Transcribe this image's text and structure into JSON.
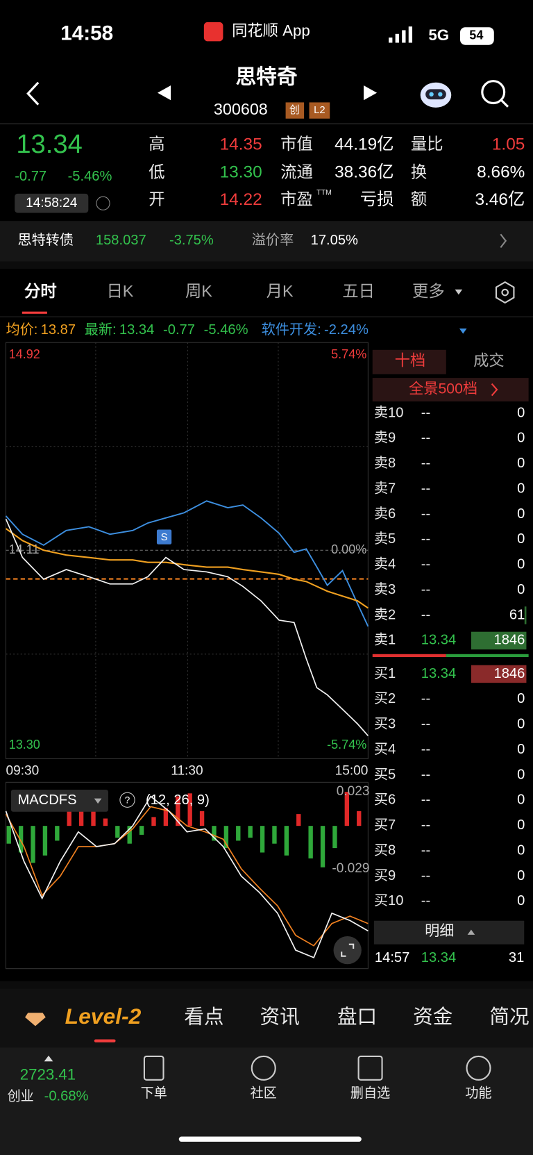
{
  "status": {
    "time": "14:58",
    "app": "同花顺 App",
    "network": "5G",
    "battery": "54"
  },
  "header": {
    "name": "思特奇",
    "code": "300608",
    "badges": [
      "创",
      "L2"
    ]
  },
  "quote": {
    "price": "13.34",
    "change": "-0.77",
    "change_pct": "-5.46%",
    "time": "14:58:24",
    "stats": [
      {
        "label": "高",
        "value": "14.35"
      },
      {
        "label": "低",
        "value": "13.30"
      },
      {
        "label": "开",
        "value": "14.22"
      }
    ],
    "metrics": [
      {
        "label": "市值",
        "value": "44.19亿"
      },
      {
        "label": "流通",
        "value": "38.36亿"
      },
      {
        "label": "市盈",
        "sup": "TTM",
        "value": "亏损"
      }
    ],
    "ratios": [
      {
        "label": "量比",
        "value": "1.05"
      },
      {
        "label": "换",
        "value": "8.66%"
      },
      {
        "label": "额",
        "value": "3.46亿"
      }
    ]
  },
  "bond": {
    "name": "思特转债",
    "price": "158.037",
    "pct": "-3.75%",
    "premium_label": "溢价率",
    "premium": "17.05%"
  },
  "tabs": [
    "分时",
    "日K",
    "周K",
    "月K",
    "五日",
    "更多"
  ],
  "info": {
    "avg_label": "均价:",
    "avg": "13.87",
    "latest_label": "最新:",
    "latest": "13.34",
    "change": "-0.77",
    "pct": "-5.46%",
    "sector_label": "软件开发:",
    "sector_pct": "-2.24%"
  },
  "intraday": {
    "marker": "S",
    "xlim": [
      0,
      240
    ],
    "xticks": [
      {
        "value": 0,
        "label": "09:30"
      },
      {
        "value": 120,
        "label": "11:30"
      },
      {
        "value": 240,
        "label": "15:00"
      }
    ],
    "ylim": [
      13.3,
      14.92
    ],
    "yticks": [
      {
        "value": 14.92,
        "label": "14.92"
      },
      {
        "value": 14.11,
        "label": "14.11"
      },
      {
        "value": 13.3,
        "label": "13.30"
      }
    ],
    "y2lim": [
      -5.74,
      5.74
    ],
    "y2ticks": [
      {
        "value": 5.74,
        "label": "5.74%"
      },
      {
        "value": 0,
        "label": "0.00%"
      },
      {
        "value": -5.74,
        "label": "-5.74%"
      }
    ],
    "minutes": [
      0,
      11,
      25,
      40,
      55,
      69,
      84,
      94,
      106,
      118,
      133,
      147,
      157,
      169,
      181,
      191,
      199,
      206,
      213,
      223,
      233,
      240
    ],
    "price": [
      14.24,
      14.08,
      13.99,
      14.03,
      14.0,
      13.97,
      13.97,
      14.0,
      14.08,
      14.03,
      14.02,
      14.0,
      13.96,
      13.9,
      13.82,
      13.81,
      13.66,
      13.54,
      13.51,
      13.45,
      13.39,
      13.34
    ],
    "avg": [
      14.2,
      14.15,
      14.11,
      14.09,
      14.08,
      14.07,
      14.07,
      14.06,
      14.06,
      14.05,
      14.04,
      14.04,
      14.03,
      14.02,
      14.01,
      13.99,
      13.98,
      13.96,
      13.94,
      13.92,
      13.9,
      13.87
    ],
    "sector_pct": [
      1.01,
      0.47,
      0.15,
      0.58,
      0.69,
      0.47,
      0.58,
      0.8,
      0.95,
      1.1,
      1.45,
      1.25,
      1.33,
      0.95,
      0.5,
      -0.06,
      0.04,
      -0.49,
      -1.03,
      -0.6,
      -1.57,
      -2.24
    ]
  },
  "macd": {
    "name": "MACDFS",
    "params": "(12, 26, 9)",
    "ylim": [
      -0.095,
      0.028
    ],
    "yticks": [
      {
        "value": 0.023,
        "label": "0.023"
      },
      {
        "value": -0.029,
        "label": "-0.029"
      }
    ],
    "minutes": [
      0,
      12,
      24,
      36,
      48,
      60,
      72,
      84,
      96,
      108,
      120,
      132,
      144,
      156,
      168,
      180,
      192,
      204,
      216,
      228,
      240
    ],
    "dif": [
      0.01,
      -0.024,
      -0.049,
      -0.024,
      -0.004,
      -0.014,
      -0.012,
      0.0,
      0.02,
      0.01,
      -0.004,
      -0.002,
      -0.014,
      -0.034,
      -0.045,
      -0.059,
      -0.084,
      -0.089,
      -0.059,
      -0.064,
      -0.071
    ],
    "dea": [
      0.008,
      -0.014,
      -0.047,
      -0.034,
      -0.014,
      -0.014,
      -0.012,
      -0.002,
      0.013,
      0.01,
      0.0,
      -0.004,
      -0.009,
      -0.029,
      -0.042,
      -0.054,
      -0.074,
      -0.081,
      -0.066,
      -0.061,
      -0.066
    ],
    "hist_minutes": [
      0,
      8,
      16,
      24,
      32,
      40,
      48,
      56,
      64,
      72,
      80,
      88,
      96,
      104,
      112,
      120,
      128,
      136,
      144,
      152,
      160,
      168,
      176,
      184,
      192,
      200,
      208,
      216,
      224,
      232
    ],
    "hist": [
      -0.012,
      -0.018,
      -0.025,
      -0.02,
      -0.01,
      0.012,
      0.02,
      0.018,
      0.005,
      -0.008,
      -0.012,
      -0.006,
      0.006,
      0.012,
      0.02,
      0.022,
      0.01,
      -0.01,
      -0.015,
      -0.01,
      -0.008,
      -0.018,
      -0.012,
      -0.02,
      0.008,
      -0.022,
      -0.028,
      -0.015,
      0.023,
      0.01
    ]
  },
  "orderbook": {
    "tabs": [
      "十档",
      "成交"
    ],
    "full": "全景500档",
    "sells": [
      {
        "label": "卖10",
        "price": "--",
        "volume": 0
      },
      {
        "label": "卖9",
        "price": "--",
        "volume": 0
      },
      {
        "label": "卖8",
        "price": "--",
        "volume": 0
      },
      {
        "label": "卖7",
        "price": "--",
        "volume": 0
      },
      {
        "label": "卖6",
        "price": "--",
        "volume": 0
      },
      {
        "label": "卖5",
        "price": "--",
        "volume": 0
      },
      {
        "label": "卖4",
        "price": "--",
        "volume": 0
      },
      {
        "label": "卖3",
        "price": "--",
        "volume": 0
      },
      {
        "label": "卖2",
        "price": "--",
        "volume": 61
      },
      {
        "label": "卖1",
        "price": "13.34",
        "volume": 1846
      }
    ],
    "buys": [
      {
        "label": "买1",
        "price": "13.34",
        "volume": 1846
      },
      {
        "label": "买2",
        "price": "--",
        "volume": 0
      },
      {
        "label": "买3",
        "price": "--",
        "volume": 0
      },
      {
        "label": "买4",
        "price": "--",
        "volume": 0
      },
      {
        "label": "买5",
        "price": "--",
        "volume": 0
      },
      {
        "label": "买6",
        "price": "--",
        "volume": 0
      },
      {
        "label": "买7",
        "price": "--",
        "volume": 0
      },
      {
        "label": "买8",
        "price": "--",
        "volume": 0
      },
      {
        "label": "买9",
        "price": "--",
        "volume": 0
      },
      {
        "label": "买10",
        "price": "--",
        "volume": 0
      }
    ],
    "detail_label": "明细",
    "trade": {
      "time": "14:57",
      "price": "13.34",
      "volume": 31
    }
  },
  "bottom_tabs": [
    "Level-2",
    "看点",
    "资讯",
    "盘口",
    "资金",
    "简况"
  ],
  "nav": {
    "index": "2723.41",
    "name": "创业",
    "pct": "-0.68%",
    "buttons": [
      "下单",
      "社区",
      "删自选",
      "功能"
    ]
  }
}
